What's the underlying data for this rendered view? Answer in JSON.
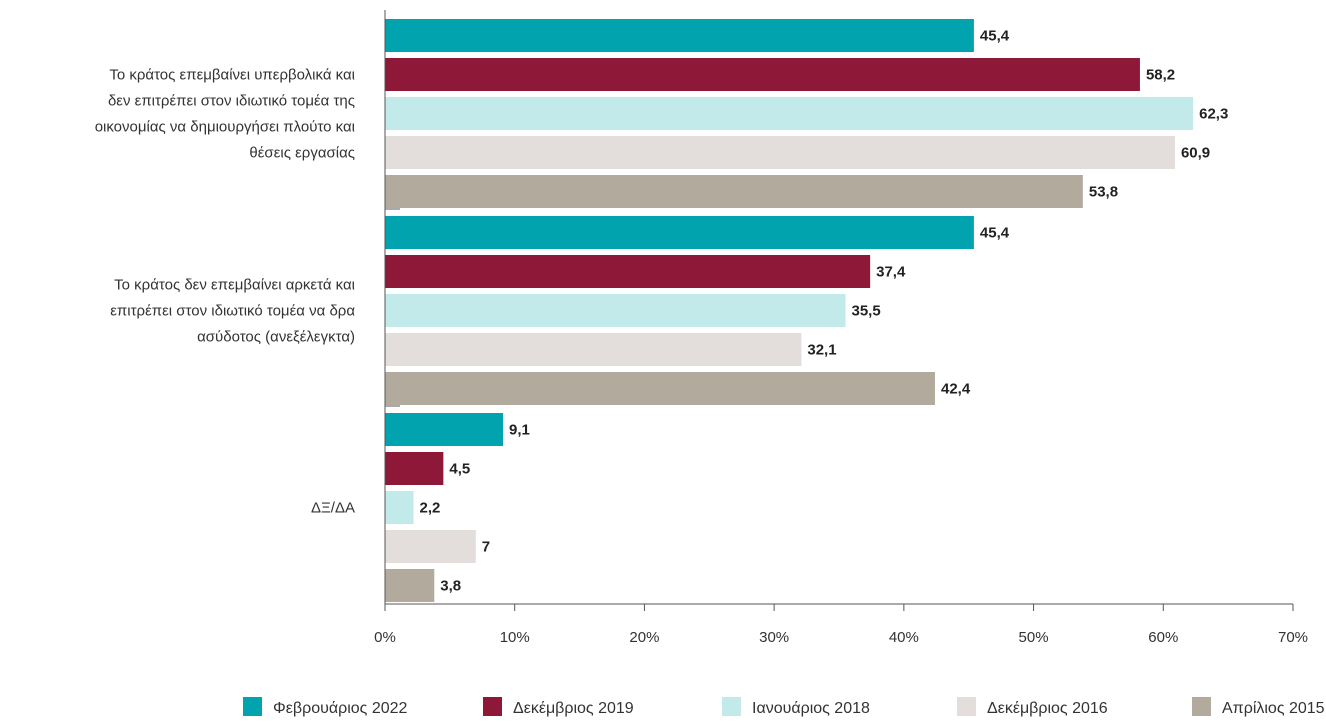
{
  "chart_data": {
    "type": "bar",
    "orientation": "horizontal",
    "categories": [
      [
        "Το κράτος επεμβαίνει υπερβολικά και",
        "δεν επιτρέπει στον ιδιωτικό τομέα της",
        "οικονομίας να δημιουργήσει πλούτο και",
        "θέσεις εργασίας"
      ],
      [
        "Το κράτος δεν επεμβαίνει αρκετά και",
        "επιτρέπει στον ιδιωτικό τομέα να δρα",
        "ασύδοτος (ανεξέλεγκτα)"
      ],
      [
        "ΔΞ/ΔΑ"
      ]
    ],
    "series": [
      {
        "name": "Φεβρουάριος 2022",
        "color": "#00a3ae",
        "values": [
          45.4,
          45.4,
          9.1
        ],
        "labels": [
          "45,4",
          "45,4",
          "9,1"
        ]
      },
      {
        "name": "Δεκέμβριος 2019",
        "color": "#8e1838",
        "values": [
          58.2,
          37.4,
          4.5
        ],
        "labels": [
          "58,2",
          "37,4",
          "4,5"
        ]
      },
      {
        "name": "Ιανουάριος 2018",
        "color": "#c2eaea",
        "values": [
          62.3,
          35.5,
          2.2
        ],
        "labels": [
          "62,3",
          "35,5",
          "2,2"
        ]
      },
      {
        "name": "Δεκέμβριος 2016",
        "color": "#e3dedb",
        "values": [
          60.9,
          32.1,
          7
        ],
        "labels": [
          "60,9",
          "32,1",
          "7"
        ]
      },
      {
        "name": "Απρίλιος 2015",
        "color": "#b3aa9e",
        "values": [
          53.8,
          42.4,
          3.8
        ],
        "labels": [
          "53,8",
          "42,4",
          "3,8"
        ]
      }
    ],
    "xlim": [
      0,
      70
    ],
    "xticks": [
      0,
      10,
      20,
      30,
      40,
      50,
      60,
      70
    ],
    "xtick_labels": [
      "0%",
      "10%",
      "20%",
      "30%",
      "40%",
      "50%",
      "60%",
      "70%"
    ],
    "grid": false,
    "legend_position": "bottom-center"
  }
}
